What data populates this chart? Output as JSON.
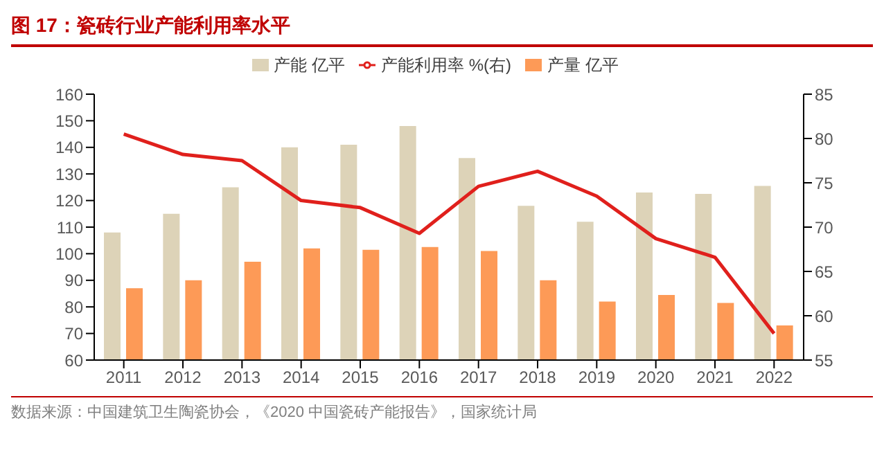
{
  "chart_data": {
    "type": "bar",
    "title": "图 17：瓷砖行业产能利用率水平",
    "categories": [
      "2011",
      "2012",
      "2013",
      "2014",
      "2015",
      "2016",
      "2017",
      "2018",
      "2019",
      "2020",
      "2021",
      "2022"
    ],
    "series": [
      {
        "name": "产能 亿平",
        "color": "#ddd3b8",
        "values": [
          108,
          115,
          125,
          140,
          141,
          148,
          136,
          118,
          112,
          123,
          122.5,
          125.5
        ]
      },
      {
        "name": "产量 亿平",
        "color": "#fd9a57",
        "values": [
          87,
          90,
          97,
          102,
          101.5,
          102.5,
          101,
          90,
          82,
          84.5,
          81.5,
          73
        ]
      },
      {
        "name": "产能利用率 %(右)",
        "type": "line",
        "axis": "y2",
        "color": "#e0201c",
        "values": [
          80.5,
          78.2,
          77.5,
          73,
          72.2,
          69.3,
          74.6,
          76.3,
          73.5,
          68.7,
          66.6,
          58
        ]
      }
    ],
    "ylim": [
      60,
      160
    ],
    "yticks": [
      60,
      70,
      80,
      90,
      100,
      110,
      120,
      130,
      140,
      150,
      160
    ],
    "y2lim": [
      55,
      85
    ],
    "y2ticks": [
      55,
      60,
      65,
      70,
      75,
      80,
      85
    ],
    "legend": "top",
    "grid": false,
    "marker": "none",
    "annotations": [
      "数据来源：中国建筑卫生陶瓷协会，《2020 中国瓷砖产能报告》，国家统计局"
    ]
  }
}
